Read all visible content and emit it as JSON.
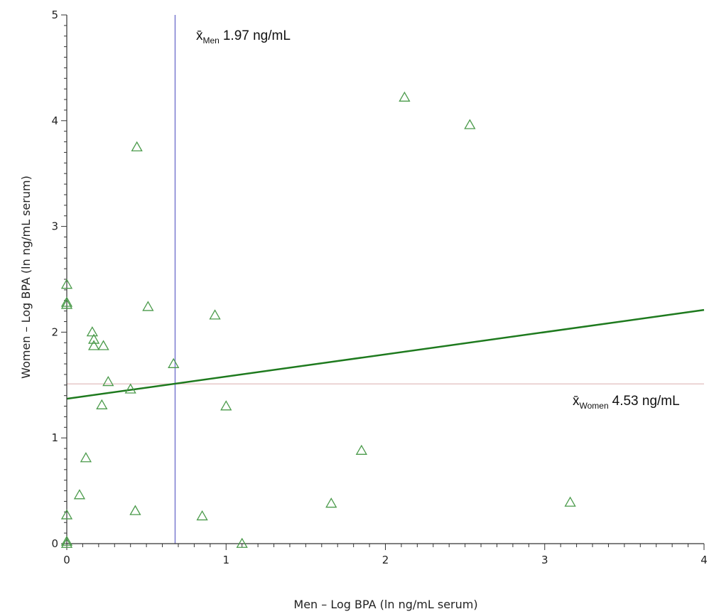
{
  "chart_data": {
    "type": "scatter",
    "title": "",
    "xlabel": "Men – Log BPA (ln ng/mL serum)",
    "ylabel": "Women – Log BPA (ln ng/mL serum)",
    "xlim": [
      0,
      4
    ],
    "ylim": [
      0,
      5
    ],
    "x_ticks": [
      0,
      1,
      2,
      3,
      4
    ],
    "y_ticks": [
      0,
      1,
      2,
      3,
      4,
      5
    ],
    "x_tick_labels": [
      "0",
      "1",
      "2",
      "3",
      "4"
    ],
    "y_tick_labels": [
      "0",
      "1",
      "2",
      "3",
      "4",
      "5"
    ],
    "grid": false,
    "marker": "triangle-open",
    "colors": {
      "points": "#4a9a4a",
      "regression": "#1e7a1e",
      "mean_men_line": "#7a7ad0",
      "mean_women_line": "#e6c8c8",
      "axis": "#333333"
    },
    "points": [
      {
        "x": 0.0,
        "y": 2.45
      },
      {
        "x": 0.0,
        "y": 2.28
      },
      {
        "x": 0.0,
        "y": 2.26
      },
      {
        "x": 0.0,
        "y": 0.27
      },
      {
        "x": 0.0,
        "y": 0.02
      },
      {
        "x": 0.0,
        "y": 0.0
      },
      {
        "x": 0.08,
        "y": 0.46
      },
      {
        "x": 0.12,
        "y": 0.81
      },
      {
        "x": 0.16,
        "y": 2.0
      },
      {
        "x": 0.17,
        "y": 1.93
      },
      {
        "x": 0.17,
        "y": 1.87
      },
      {
        "x": 0.23,
        "y": 1.87
      },
      {
        "x": 0.22,
        "y": 1.31
      },
      {
        "x": 0.26,
        "y": 1.53
      },
      {
        "x": 0.4,
        "y": 1.46
      },
      {
        "x": 0.43,
        "y": 0.31
      },
      {
        "x": 0.44,
        "y": 3.75
      },
      {
        "x": 0.51,
        "y": 2.24
      },
      {
        "x": 0.67,
        "y": 1.7
      },
      {
        "x": 0.85,
        "y": 0.26
      },
      {
        "x": 0.93,
        "y": 2.16
      },
      {
        "x": 1.0,
        "y": 1.3
      },
      {
        "x": 1.1,
        "y": 0.0
      },
      {
        "x": 1.66,
        "y": 0.38
      },
      {
        "x": 1.85,
        "y": 0.88
      },
      {
        "x": 2.12,
        "y": 4.22
      },
      {
        "x": 2.53,
        "y": 3.96
      },
      {
        "x": 3.16,
        "y": 0.39
      }
    ],
    "regression": {
      "x": [
        0,
        4
      ],
      "y": [
        1.37,
        2.21
      ]
    },
    "mean_men_x": 0.68,
    "mean_women_y": 1.51,
    "annotations": {
      "men": {
        "symbol": "x̄",
        "subscript": "Men",
        "value": "1.97 ng/mL"
      },
      "women": {
        "symbol": "x̄",
        "subscript": "Women",
        "value": "4.53 ng/mL"
      }
    }
  }
}
